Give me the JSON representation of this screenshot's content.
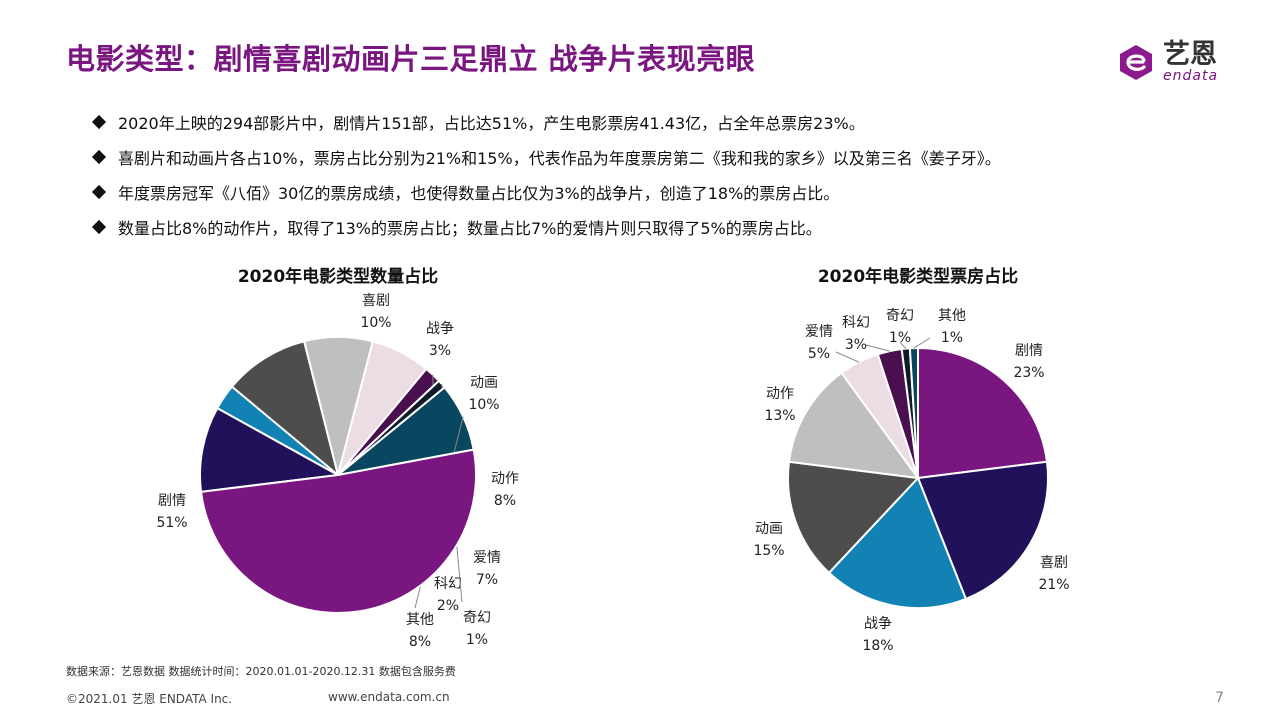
{
  "title": "电影类型：剧情喜剧动画片三足鼎立 战争片表现亮眼",
  "logo": {
    "cn": "艺恩",
    "en": "endata"
  },
  "bullets": [
    "2020年上映的294部影片中，剧情片151部，占比达51%，产生电影票房41.43亿，占全年总票房23%。",
    "喜剧片和动画片各占10%，票房占比分别为21%和15%，代表作品为年度票房第二《我和我的家乡》以及第三名《姜子牙》。",
    "年度票房冠军《八佰》30亿的票房成绩，也使得数量占比仅为3%的战争片，创造了18%的票房占比。",
    "数量占比8%的动作片，取得了13%的票房占比；数量占比7%的爱情片则只取得了5%的票房占比。"
  ],
  "chart_data": [
    {
      "type": "pie",
      "title": "2020年电影类型数量占比",
      "slices": [
        {
          "name": "喜剧",
          "value": 10,
          "label": "10%",
          "color": "#21115a"
        },
        {
          "name": "战争",
          "value": 3,
          "label": "3%",
          "color": "#1281b4"
        },
        {
          "name": "动画",
          "value": 10,
          "label": "10%",
          "color": "#4d4d4d"
        },
        {
          "name": "动作",
          "value": 8,
          "label": "8%",
          "color": "#bfbfbf"
        },
        {
          "name": "爱情",
          "value": 7,
          "label": "7%",
          "color": "#ecdde5"
        },
        {
          "name": "科幻",
          "value": 2,
          "label": "2%",
          "color": "#4a0f4f"
        },
        {
          "name": "奇幻",
          "value": 1,
          "label": "1%",
          "color": "#111a2b"
        },
        {
          "name": "其他",
          "value": 8,
          "label": "8%",
          "color": "#09465f"
        },
        {
          "name": "剧情",
          "value": 51,
          "label": "51%",
          "color": "#7a1680"
        }
      ]
    },
    {
      "type": "pie",
      "title": "2020年电影类型票房占比",
      "slices": [
        {
          "name": "剧情",
          "value": 23,
          "label": "23%",
          "color": "#7a1680"
        },
        {
          "name": "喜剧",
          "value": 21,
          "label": "21%",
          "color": "#21115a"
        },
        {
          "name": "战争",
          "value": 18,
          "label": "18%",
          "color": "#1281b4"
        },
        {
          "name": "动画",
          "value": 15,
          "label": "15%",
          "color": "#4d4d4d"
        },
        {
          "name": "动作",
          "value": 13,
          "label": "13%",
          "color": "#bfbfbf"
        },
        {
          "name": "爱情",
          "value": 5,
          "label": "5%",
          "color": "#ecdde5"
        },
        {
          "name": "科幻",
          "value": 3,
          "label": "3%",
          "color": "#4a0f4f"
        },
        {
          "name": "奇幻",
          "value": 1,
          "label": "1%",
          "color": "#111a2b"
        },
        {
          "name": "其他",
          "value": 1,
          "label": "1%",
          "color": "#09465f"
        }
      ]
    }
  ],
  "footer": {
    "source": "数据来源：艺恩数据   数据统计时间：2020.01.01-2020.12.31 数据包含服务费",
    "copyright": "©2021.01 艺恩 ENDATA Inc.",
    "website": "www.endata.com.cn",
    "page": "7"
  }
}
